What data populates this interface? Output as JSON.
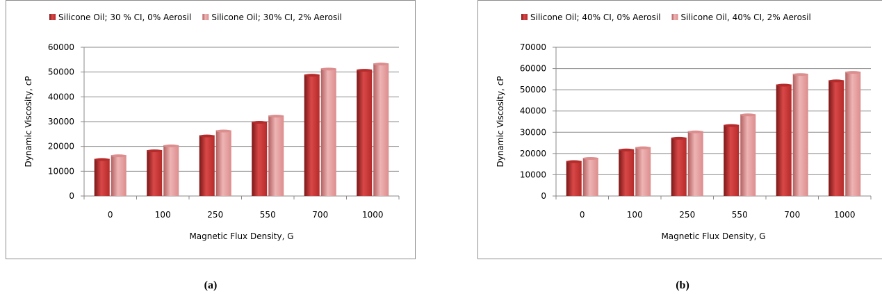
{
  "colors": {
    "series_dark": [
      "#7a1717",
      "#b52a2a",
      "#d94848"
    ],
    "series_light": [
      "#b25f5f",
      "#dc8d8d",
      "#eeb4b4"
    ],
    "grid": "#8a8a8a",
    "axis": "#8a8a8a",
    "text": "#000000",
    "border": "#8c8c8c"
  },
  "charts": [
    {
      "sublabel": "(a)"
    },
    {
      "sublabel": "(b)"
    }
  ],
  "chart_data": [
    {
      "type": "bar",
      "title": "",
      "xlabel": "Magnetic Flux Density, G",
      "ylabel": "Dynamic Viscosity,  cP",
      "categories": [
        "0",
        "100",
        "250",
        "550",
        "700",
        "1000"
      ],
      "ylim": [
        0,
        60000
      ],
      "yticks": [
        0,
        10000,
        20000,
        30000,
        40000,
        50000,
        60000
      ],
      "grid": true,
      "legend_position": "top",
      "series": [
        {
          "name": "Silicone Oil; 30 % CI, 0% Aerosil",
          "values": [
            15000,
            18500,
            24500,
            30000,
            49000,
            51000
          ]
        },
        {
          "name": "Silicone Oil; 30% CI, 2% Aerosil",
          "values": [
            16500,
            20500,
            26500,
            32500,
            51500,
            53500
          ]
        }
      ]
    },
    {
      "type": "bar",
      "title": "",
      "xlabel": "Magnetic Flux Density, G",
      "ylabel": "Dynamic Viscosity,  cP",
      "categories": [
        "0",
        "100",
        "250",
        "550",
        "700",
        "1000"
      ],
      "ylim": [
        0,
        70000
      ],
      "yticks": [
        0,
        10000,
        20000,
        30000,
        40000,
        50000,
        60000,
        70000
      ],
      "grid": true,
      "legend_position": "top",
      "series": [
        {
          "name": "Silicone Oil; 40% CI, 0% Aerosil",
          "values": [
            16500,
            22000,
            27500,
            33500,
            52500,
            54500
          ]
        },
        {
          "name": "Silicone Oil, 40% CI, 2% Aerosil",
          "values": [
            18000,
            23000,
            30500,
            38500,
            57500,
            58500
          ]
        }
      ]
    }
  ]
}
